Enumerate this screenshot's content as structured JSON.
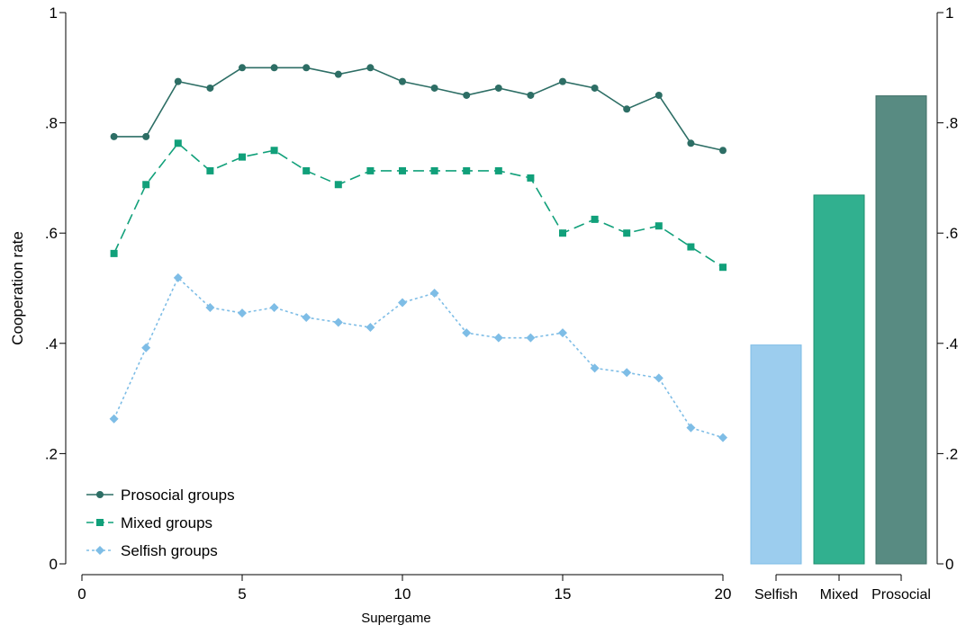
{
  "chart_data": [
    {
      "type": "line",
      "title": "",
      "xlabel": "Supergame",
      "ylabel": "Cooperation rate",
      "xlim": [
        0,
        20
      ],
      "ylim": [
        0,
        1
      ],
      "x_ticks": [
        0,
        5,
        10,
        15,
        20
      ],
      "y_ticks": [
        0,
        0.2,
        0.4,
        0.6,
        0.8,
        1
      ],
      "y_tick_labels": [
        "0",
        ".2",
        ".4",
        ".6",
        ".8",
        "1"
      ],
      "grid": false,
      "legend_position": "bottom-left",
      "x": [
        1,
        2,
        3,
        4,
        5,
        6,
        7,
        8,
        9,
        10,
        11,
        12,
        13,
        14,
        15,
        16,
        17,
        18,
        19,
        20
      ],
      "series": [
        {
          "name": "Prosocial groups",
          "marker": "circle",
          "line_style": "solid",
          "color": "#2d6e65",
          "values": [
            0.775,
            0.775,
            0.875,
            0.863,
            0.9,
            0.9,
            0.9,
            0.888,
            0.9,
            0.875,
            0.863,
            0.85,
            0.863,
            0.85,
            0.875,
            0.863,
            0.825,
            0.85,
            0.763,
            0.75
          ]
        },
        {
          "name": "Mixed groups",
          "marker": "square",
          "line_style": "dashed",
          "color": "#11a07a",
          "values": [
            0.563,
            0.688,
            0.763,
            0.713,
            0.738,
            0.75,
            0.713,
            0.688,
            0.713,
            0.713,
            0.713,
            0.713,
            0.713,
            0.7,
            0.6,
            0.625,
            0.6,
            0.613,
            0.575,
            0.538
          ]
        },
        {
          "name": "Selfish groups",
          "marker": "diamond",
          "line_style": "dotted",
          "color": "#7ebde6",
          "values": [
            0.263,
            0.392,
            0.519,
            0.465,
            0.455,
            0.465,
            0.447,
            0.438,
            0.429,
            0.474,
            0.491,
            0.419,
            0.41,
            0.41,
            0.419,
            0.355,
            0.347,
            0.337,
            0.247,
            0.229
          ]
        }
      ]
    },
    {
      "type": "bar",
      "title": "",
      "categories": [
        "Selfish",
        "Mixed",
        "Prosocial"
      ],
      "values": [
        0.397,
        0.669,
        0.849
      ],
      "colors": [
        "#9ccdee",
        "#31b08f",
        "#588b82"
      ],
      "ylim": [
        0,
        1
      ],
      "y_ticks": [
        0,
        0.2,
        0.4,
        0.6,
        0.8,
        1
      ],
      "y_tick_labels": [
        "0",
        ".2",
        ".4",
        ".6",
        ".8",
        "1"
      ],
      "y_axis_side": "right",
      "grid": false
    }
  ]
}
